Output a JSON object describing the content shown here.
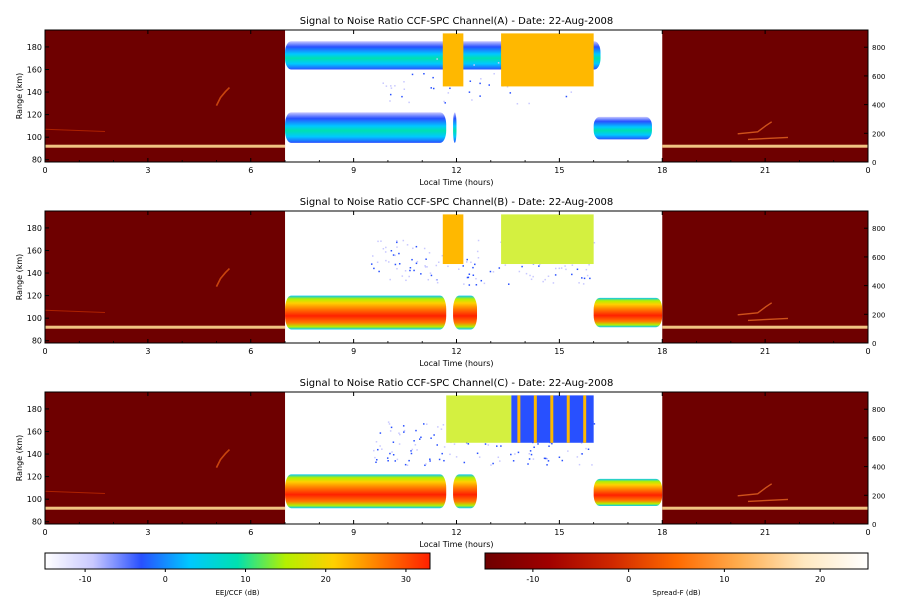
{
  "colors": {
    "night_bg": "#6e0000",
    "ejj_cmap": [
      "#ffffff",
      "#c8c8ff",
      "#2850ff",
      "#00c8ff",
      "#00e0b0",
      "#b4f000",
      "#ffd000",
      "#ff7800",
      "#ff2000"
    ],
    "spreadf_cmap": [
      "#6e0000",
      "#a00000",
      "#d02800",
      "#ff6a00",
      "#ffae50",
      "#ffe8c0",
      "#ffffff"
    ],
    "block_yellow": "#ffb800",
    "block_lime": "#d4f040"
  },
  "chart_data": [
    {
      "id": "A",
      "type": "heatmap",
      "title": "Signal to Noise Ratio CCF-SPC Channel(A) - Date: 22-Aug-2008",
      "xlabel": "Local Time (hours)",
      "ylabel": "Range (km)",
      "xlim": [
        0,
        24
      ],
      "ylim": [
        78,
        195
      ],
      "xticks": [
        "0",
        "3",
        "6",
        "9",
        "12",
        "15",
        "18",
        "21",
        "0"
      ],
      "yticks": [
        80,
        100,
        120,
        140,
        160,
        180
      ],
      "right_ylim": [
        0,
        920
      ],
      "right_yticks": [
        0,
        200,
        400,
        600,
        800
      ],
      "day_window": [
        7,
        18
      ],
      "bands": [
        {
          "t0": 7.0,
          "t1": 16.2,
          "r0": 160,
          "r1": 185,
          "snr": -2
        },
        {
          "t0": 7.0,
          "t1": 11.7,
          "r0": 95,
          "r1": 122,
          "snr": 0
        },
        {
          "t0": 11.9,
          "t1": 12.0,
          "r0": 95,
          "r1": 122,
          "snr": 0
        },
        {
          "t0": 16.0,
          "t1": 17.7,
          "r0": 98,
          "r1": 118,
          "snr": 0
        }
      ],
      "blocks": [
        {
          "t0": 11.6,
          "t1": 12.2,
          "r0": 145,
          "r1": 192,
          "color": "yellow"
        },
        {
          "t0": 13.3,
          "t1": 16.0,
          "r0": 145,
          "r1": 192,
          "color": "yellow"
        }
      ],
      "gaps": [
        {
          "t0": 12.6,
          "t1": 13.3
        }
      ]
    },
    {
      "id": "B",
      "type": "heatmap",
      "title": "Signal to Noise Ratio CCF-SPC Channel(B) - Date: 22-Aug-2008",
      "xlabel": "Local Time (hours)",
      "ylabel": "Range (km)",
      "xlim": [
        0,
        24
      ],
      "ylim": [
        78,
        195
      ],
      "xticks": [
        "0",
        "3",
        "6",
        "9",
        "12",
        "15",
        "18",
        "21",
        "0"
      ],
      "yticks": [
        80,
        100,
        120,
        140,
        160,
        180
      ],
      "right_ylim": [
        0,
        920
      ],
      "right_yticks": [
        0,
        200,
        400,
        600,
        800
      ],
      "day_window": [
        7,
        18
      ],
      "bands": [
        {
          "t0": 7.0,
          "t1": 11.7,
          "r0": 90,
          "r1": 120,
          "snr": 28
        },
        {
          "t0": 11.9,
          "t1": 12.6,
          "r0": 90,
          "r1": 120,
          "snr": 28
        },
        {
          "t0": 16.0,
          "t1": 18.0,
          "r0": 92,
          "r1": 118,
          "snr": 26
        }
      ],
      "blocks": [
        {
          "t0": 11.6,
          "t1": 12.2,
          "r0": 148,
          "r1": 192,
          "color": "yellow"
        },
        {
          "t0": 13.3,
          "t1": 16.0,
          "r0": 148,
          "r1": 192,
          "color": "lime"
        }
      ],
      "gaps": [
        {
          "t0": 12.6,
          "t1": 13.3
        }
      ]
    },
    {
      "id": "C",
      "type": "heatmap",
      "title": "Signal to Noise Ratio CCF-SPC Channel(C) - Date: 22-Aug-2008",
      "xlabel": "Local Time (hours)",
      "ylabel": "Range (km)",
      "xlim": [
        0,
        24
      ],
      "ylim": [
        78,
        195
      ],
      "xticks": [
        "0",
        "3",
        "6",
        "9",
        "12",
        "15",
        "18",
        "21",
        "0"
      ],
      "yticks": [
        80,
        100,
        120,
        140,
        160,
        180
      ],
      "right_ylim": [
        0,
        920
      ],
      "right_yticks": [
        0,
        200,
        400,
        600,
        800
      ],
      "day_window": [
        7,
        18
      ],
      "bands": [
        {
          "t0": 7.0,
          "t1": 11.7,
          "r0": 92,
          "r1": 122,
          "snr": 28
        },
        {
          "t0": 11.9,
          "t1": 12.6,
          "r0": 92,
          "r1": 122,
          "snr": 28
        },
        {
          "t0": 16.0,
          "t1": 18.0,
          "r0": 94,
          "r1": 118,
          "snr": 26
        }
      ],
      "blocks": [
        {
          "t0": 11.7,
          "t1": 13.6,
          "r0": 150,
          "r1": 192,
          "color": "lime"
        },
        {
          "t0": 13.6,
          "t1": 16.0,
          "r0": 150,
          "r1": 192,
          "color": "blue"
        }
      ],
      "gaps": [
        {
          "t0": 12.6,
          "t1": 13.3
        }
      ]
    }
  ],
  "colorbars": [
    {
      "label": "EEJ/CCF (dB)",
      "range": [
        -15,
        33
      ],
      "ticks": [
        -10,
        0,
        10,
        20,
        30
      ]
    },
    {
      "label": "Spread-F (dB)",
      "range": [
        -15,
        25
      ],
      "ticks": [
        -10,
        0,
        10,
        20
      ]
    }
  ]
}
